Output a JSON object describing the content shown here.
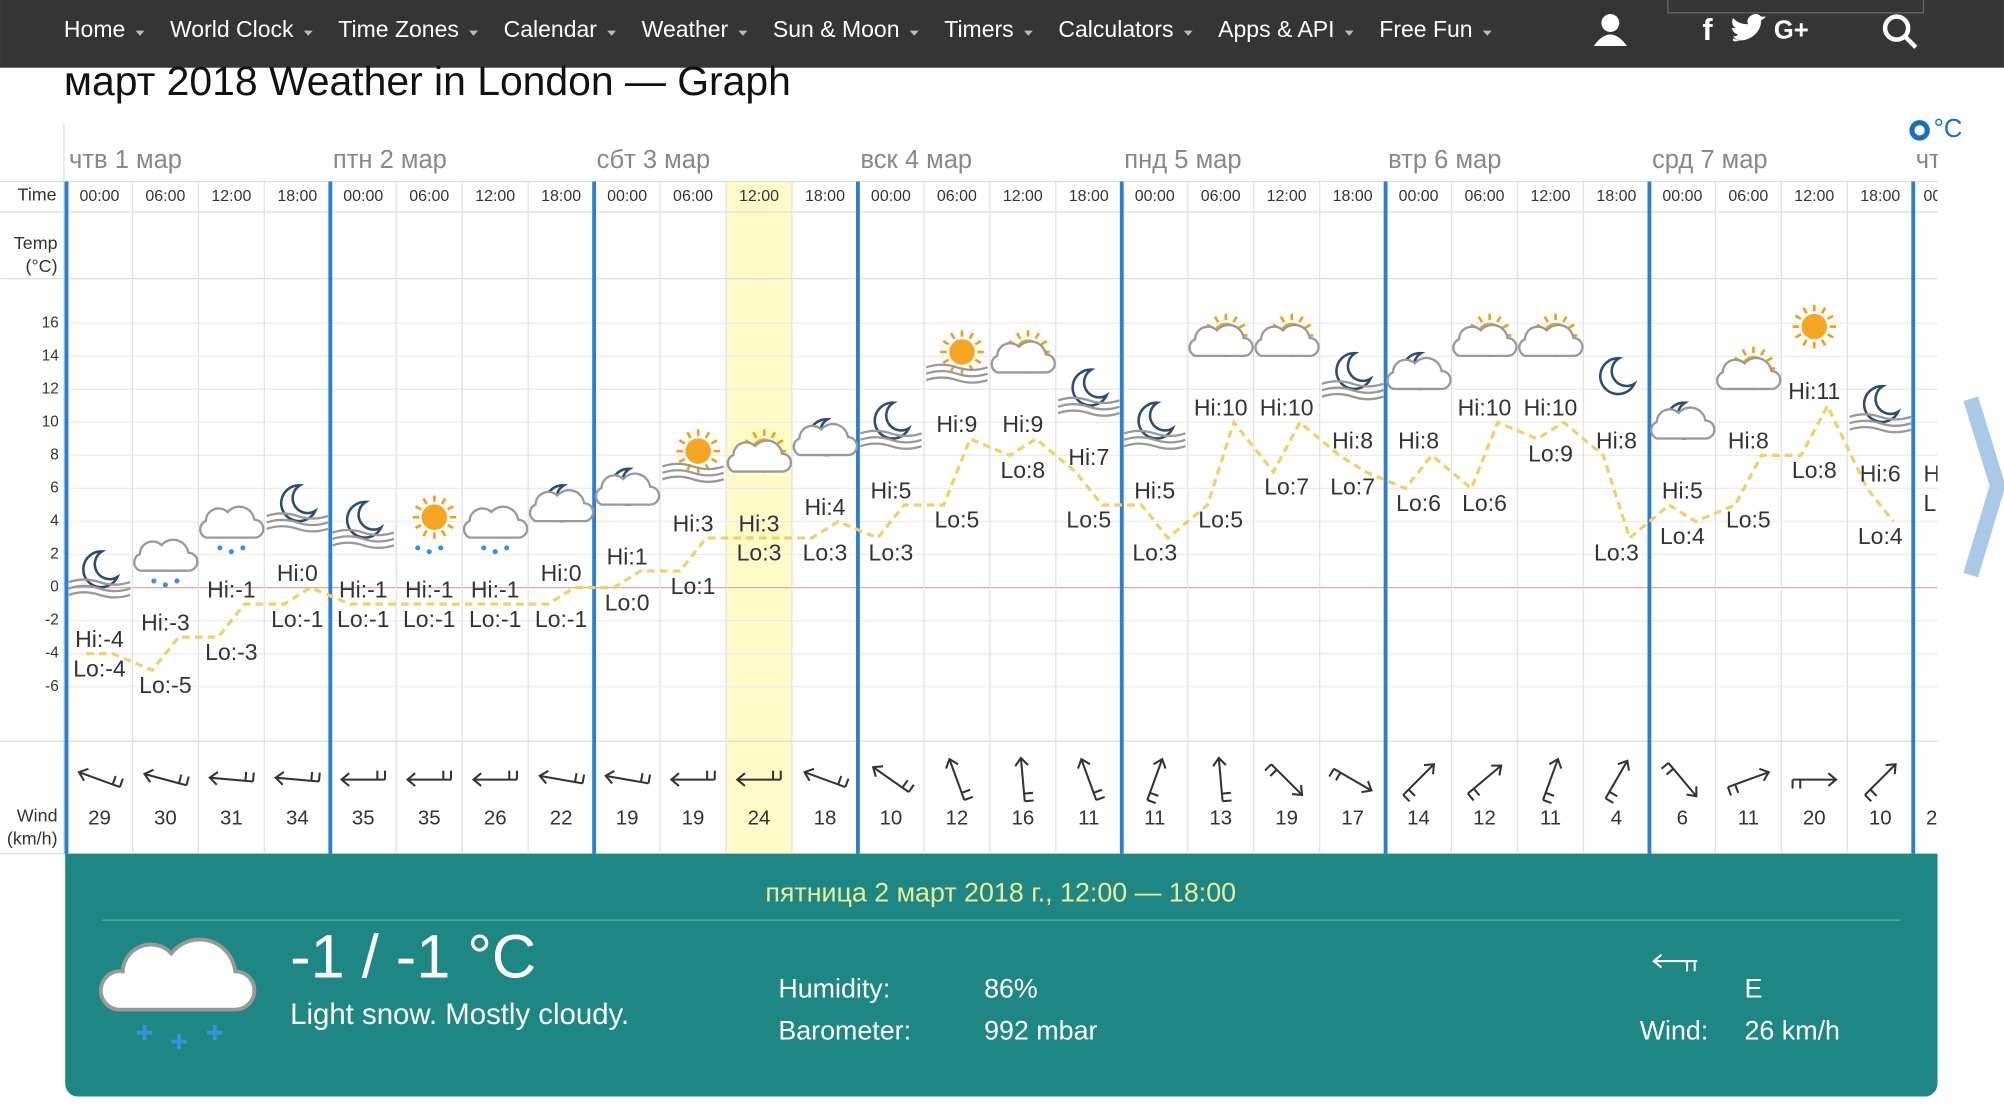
{
  "nav": {
    "items": [
      "Home",
      "World Clock",
      "Time Zones",
      "Calendar",
      "Weather",
      "Sun & Moon",
      "Timers",
      "Calculators",
      "Apps & API",
      "Free Fun"
    ],
    "social": [
      "f",
      "G+"
    ]
  },
  "title": "март 2018 Weather in London — Graph",
  "unit": "°C",
  "graph": {
    "row_labels": {
      "time": "Time",
      "temp": [
        "Temp",
        "(°C)"
      ],
      "wind": [
        "Wind",
        "(km/h)"
      ]
    },
    "days": [
      "чтв 1 мар",
      "птн 2 мар",
      "сбт 3 мар",
      "вск 4 мар",
      "пнд 5 мар",
      "втр 6 мар",
      "срд 7 мар"
    ],
    "partial_day": "чт",
    "times": [
      "00:00",
      "06:00",
      "12:00",
      "18:00",
      "00:00",
      "06:00",
      "12:00",
      "18:00",
      "00:00",
      "06:00",
      "12:00",
      "18:00",
      "00:00",
      "06:00",
      "12:00",
      "18:00",
      "00:00",
      "06:00",
      "12:00",
      "18:00",
      "00:00",
      "06:00",
      "12:00",
      "18:00",
      "00:00",
      "06:00",
      "12:00",
      "18:00"
    ],
    "partial_time": "00",
    "ylim": [
      -9.3,
      18.7
    ],
    "yticks": [
      16,
      14,
      12,
      10,
      8,
      6,
      4,
      2,
      0,
      -2,
      -4,
      -6
    ],
    "hi": [
      -4,
      -3,
      -1,
      0,
      -1,
      -1,
      -1,
      0,
      1,
      3,
      3,
      4,
      5,
      9,
      9,
      7,
      5,
      10,
      10,
      8,
      8,
      10,
      10,
      8,
      5,
      8,
      11,
      6
    ],
    "hi_labels": [
      "Hi:-4",
      "Hi:-3",
      "Hi:-1",
      "Hi:0",
      "Hi:-1",
      "Hi:-1",
      "Hi:-1",
      "Hi:0",
      "Hi:1",
      "Hi:3",
      "Hi:3",
      "Hi:4",
      "Hi:5",
      "Hi:9",
      "Hi:9",
      "Hi:7",
      "Hi:5",
      "Hi:10",
      "Hi:10",
      "Hi:8",
      "Hi:8",
      "Hi:10",
      "Hi:10",
      "Hi:8",
      "Hi:5",
      "Hi:8",
      "Hi:11",
      "Hi:6"
    ],
    "lo": [
      -4,
      -5,
      -3,
      -1,
      -1,
      -1,
      -1,
      -1,
      0,
      1,
      3,
      3,
      3,
      5,
      8,
      5,
      3,
      5,
      7,
      7,
      6,
      6,
      9,
      3,
      4,
      5,
      8,
      4
    ],
    "lo_labels": [
      "Lo:-4",
      "Lo:-5",
      "Lo:-3",
      "Lo:-1",
      "Lo:-1",
      "Lo:-1",
      "Lo:-1",
      "Lo:-1",
      "Lo:0",
      "Lo:1",
      "Lo:3",
      "Lo:3",
      "Lo:3",
      "Lo:5",
      "Lo:8",
      "Lo:5",
      "Lo:3",
      "Lo:5",
      "Lo:7",
      "Lo:7",
      "Lo:6",
      "Lo:6",
      "Lo:9",
      "Lo:3",
      "Lo:4",
      "Lo:5",
      "Lo:8",
      "Lo:4"
    ],
    "wind": [
      29,
      30,
      31,
      34,
      35,
      35,
      26,
      22,
      19,
      19,
      24,
      18,
      10,
      12,
      16,
      11,
      11,
      13,
      19,
      17,
      14,
      12,
      11,
      4,
      6,
      11,
      20,
      10
    ],
    "wind_dir": [
      200,
      195,
      185,
      185,
      180,
      180,
      180,
      190,
      190,
      180,
      180,
      200,
      215,
      250,
      265,
      250,
      290,
      265,
      45,
      30,
      315,
      320,
      290,
      300,
      50,
      340,
      0,
      315
    ],
    "partial": {
      "hi_label": "H",
      "lo_label": "L",
      "wind": "2"
    }
  },
  "detail": {
    "heading": "пятница 2 март 2018 г., 12:00 — 18:00",
    "temp": "-1 / -1 °C",
    "description": "Light snow. Mostly cloudy.",
    "humidity_label": "Humidity:",
    "humidity": "86%",
    "barometer_label": "Barometer:",
    "barometer": "992 mbar",
    "wind_dir": "E",
    "wind_label": "Wind:",
    "wind": "26 km/h"
  }
}
